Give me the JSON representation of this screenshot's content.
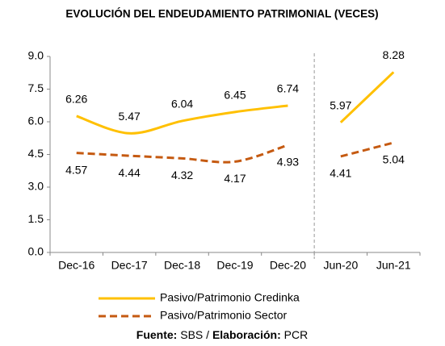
{
  "chart_data": {
    "type": "line",
    "title": "EVOLUCIÓN DEL ENDEUDAMIENTO PATRIMONIAL (VECES)",
    "categories": [
      "Dec-16",
      "Dec-17",
      "Dec-18",
      "Dec-19",
      "Dec-20",
      "Jun-20",
      "Jun-21"
    ],
    "separator_after": 4,
    "series": [
      {
        "name": "Pasivo/Patrimonio Credinka",
        "color": "#FFC000",
        "dashed": false,
        "values": [
          6.26,
          5.47,
          6.04,
          6.45,
          6.74,
          5.97,
          8.28
        ]
      },
      {
        "name": "Pasivo/Patrimonio Sector",
        "color": "#C55A11",
        "dashed": true,
        "values": [
          4.57,
          4.44,
          4.32,
          4.17,
          4.93,
          4.41,
          5.04
        ]
      }
    ],
    "ylim": [
      0,
      9
    ],
    "yticks": [
      {
        "value": 0,
        "label": "0.0"
      },
      1.5,
      {
        "value": 3,
        "label": "3.0"
      },
      4.5,
      {
        "value": 6,
        "label": "6.0"
      },
      7.5,
      {
        "value": 9,
        "label": "9.0"
      }
    ],
    "grid": false,
    "source": [
      "Fuente:",
      "SBS /",
      "Elaboración:",
      "PCR"
    ]
  }
}
